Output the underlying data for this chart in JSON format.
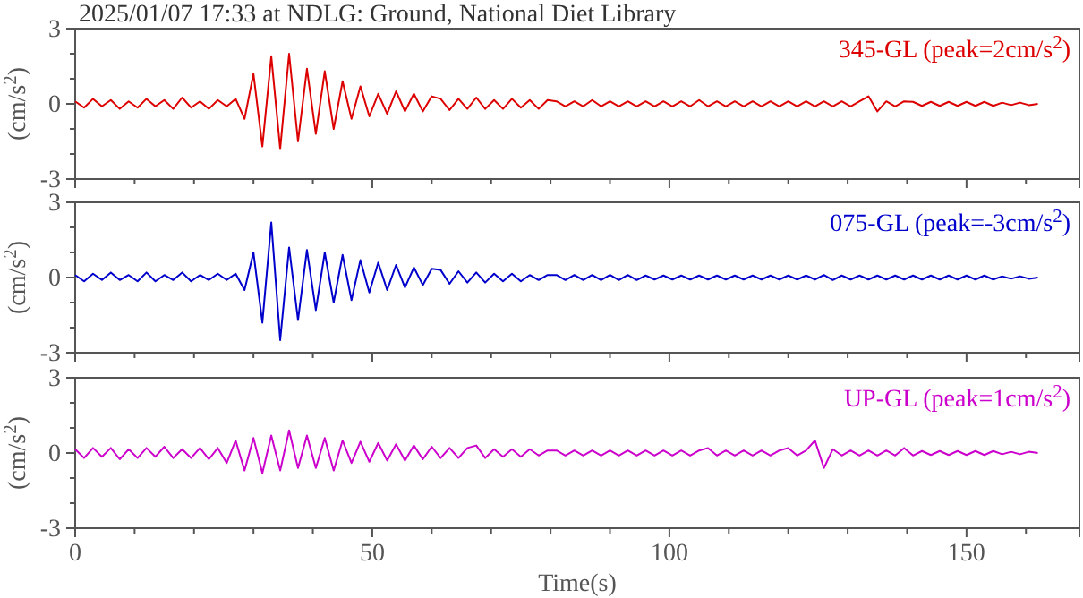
{
  "chart_data": [
    {
      "type": "line",
      "title": "2025/01/07 17:33 at NDLG: Ground, National Diet Library",
      "ylabel": "(cm/s$^{2}$)",
      "legend": "top right",
      "tick_labels": "y",
      "grid": false,
      "marker": "none",
      "line_style": "solid",
      "xlim": [
        0,
        169
      ],
      "xticks": [
        0,
        {
          "value": 10,
          "label": null
        },
        {
          "value": 20,
          "label": null
        },
        {
          "value": 30,
          "label": null
        },
        {
          "value": 40,
          "label": null
        },
        50,
        {
          "value": 60,
          "label": null
        },
        {
          "value": 70,
          "label": null
        },
        {
          "value": 80,
          "label": null
        },
        {
          "value": 90,
          "label": null
        },
        100,
        {
          "value": 110,
          "label": null
        },
        {
          "value": 120,
          "label": null
        },
        {
          "value": 130,
          "label": null
        },
        {
          "value": 140,
          "label": null
        },
        150,
        {
          "value": 160,
          "label": null
        }
      ],
      "ylim": [
        -3,
        3
      ],
      "yticks": [
        -3,
        {
          "value": -2,
          "label": null
        },
        {
          "value": -1,
          "label": null
        },
        0,
        {
          "value": 1,
          "label": null
        },
        {
          "value": 2,
          "label": null
        },
        3
      ],
      "x": [
        0,
        1.5,
        3,
        4.5,
        6,
        7.5,
        9,
        10.5,
        12,
        13.5,
        15,
        16.5,
        18,
        19.5,
        21,
        22.5,
        24,
        25.5,
        27,
        28.5,
        30,
        31.5,
        33,
        34.5,
        36,
        37.5,
        39,
        40.5,
        42,
        43.5,
        45,
        46.5,
        48,
        49.5,
        51,
        52.5,
        54,
        55.5,
        57,
        58.5,
        60,
        61.5,
        63,
        64.5,
        66,
        67.5,
        69,
        70.5,
        72,
        73.5,
        75,
        76.5,
        78,
        79.5,
        81,
        82.5,
        84,
        85.5,
        87,
        88.5,
        90,
        91.5,
        93,
        94.5,
        96,
        97.5,
        99,
        100.5,
        102,
        103.5,
        105,
        106.5,
        108,
        109.5,
        111,
        112.5,
        114,
        115.5,
        117,
        118.5,
        120,
        121.5,
        123,
        124.5,
        126,
        127.5,
        129,
        130.5,
        132,
        133.5,
        135,
        136.5,
        138,
        139.5,
        141,
        142.5,
        144,
        145.5,
        147,
        148.5,
        150,
        151.5,
        153,
        154.5,
        156,
        157.5,
        159,
        160.5,
        162
      ],
      "series": [
        {
          "name": "345-GL (peak=2cm/s$^{2}$)",
          "color": "#dd0000",
          "values": [
            0.1,
            -0.15,
            0.2,
            -0.1,
            0.15,
            -0.2,
            0.1,
            -0.15,
            0.2,
            -0.1,
            0.15,
            -0.2,
            0.25,
            -0.15,
            0.1,
            -0.2,
            0.15,
            -0.1,
            0.2,
            -0.6,
            1.2,
            -1.7,
            1.9,
            -1.8,
            2.0,
            -1.5,
            1.4,
            -1.2,
            1.3,
            -1.0,
            0.9,
            -0.6,
            0.7,
            -0.5,
            0.4,
            -0.4,
            0.5,
            -0.3,
            0.4,
            -0.3,
            0.3,
            0.2,
            -0.25,
            0.2,
            -0.2,
            0.25,
            -0.2,
            0.15,
            -0.2,
            0.2,
            -0.15,
            0.15,
            -0.2,
            0.15,
            0.1,
            -0.1,
            0.1,
            -0.1,
            0.15,
            -0.1,
            0.1,
            -0.1,
            0.1,
            -0.1,
            0.1,
            -0.1,
            0.1,
            -0.1,
            0.1,
            -0.1,
            0.15,
            -0.1,
            0.1,
            -0.1,
            0.1,
            -0.1,
            0.1,
            -0.1,
            0.1,
            -0.1,
            0.1,
            -0.1,
            0.1,
            -0.1,
            0.1,
            -0.1,
            0.1,
            -0.1,
            0.1,
            0.3,
            -0.3,
            0.1,
            -0.1,
            0.1,
            0.08,
            -0.08,
            0.08,
            -0.08,
            0.08,
            -0.08,
            0.08,
            -0.08,
            0.08,
            -0.08,
            0.05,
            -0.05,
            0.05,
            -0.05,
            0
          ]
        }
      ]
    },
    {
      "type": "line",
      "ylabel": "(cm/s$^{2}$)",
      "legend": "top right",
      "tick_labels": "y",
      "grid": false,
      "marker": "none",
      "line_style": "solid",
      "xlim": [
        0,
        169
      ],
      "xticks": [
        0,
        {
          "value": 10,
          "label": null
        },
        {
          "value": 20,
          "label": null
        },
        {
          "value": 30,
          "label": null
        },
        {
          "value": 40,
          "label": null
        },
        50,
        {
          "value": 60,
          "label": null
        },
        {
          "value": 70,
          "label": null
        },
        {
          "value": 80,
          "label": null
        },
        {
          "value": 90,
          "label": null
        },
        100,
        {
          "value": 110,
          "label": null
        },
        {
          "value": 120,
          "label": null
        },
        {
          "value": 130,
          "label": null
        },
        {
          "value": 140,
          "label": null
        },
        150,
        {
          "value": 160,
          "label": null
        }
      ],
      "ylim": [
        -3,
        3
      ],
      "yticks": [
        -3,
        {
          "value": -2,
          "label": null
        },
        {
          "value": -1,
          "label": null
        },
        0,
        {
          "value": 1,
          "label": null
        },
        {
          "value": 2,
          "label": null
        },
        3
      ],
      "x": [
        0,
        1.5,
        3,
        4.5,
        6,
        7.5,
        9,
        10.5,
        12,
        13.5,
        15,
        16.5,
        18,
        19.5,
        21,
        22.5,
        24,
        25.5,
        27,
        28.5,
        30,
        31.5,
        33,
        34.5,
        36,
        37.5,
        39,
        40.5,
        42,
        43.5,
        45,
        46.5,
        48,
        49.5,
        51,
        52.5,
        54,
        55.5,
        57,
        58.5,
        60,
        61.5,
        63,
        64.5,
        66,
        67.5,
        69,
        70.5,
        72,
        73.5,
        75,
        76.5,
        78,
        79.5,
        81,
        82.5,
        84,
        85.5,
        87,
        88.5,
        90,
        91.5,
        93,
        94.5,
        96,
        97.5,
        99,
        100.5,
        102,
        103.5,
        105,
        106.5,
        108,
        109.5,
        111,
        112.5,
        114,
        115.5,
        117,
        118.5,
        120,
        121.5,
        123,
        124.5,
        126,
        127.5,
        129,
        130.5,
        132,
        133.5,
        135,
        136.5,
        138,
        139.5,
        141,
        142.5,
        144,
        145.5,
        147,
        148.5,
        150,
        151.5,
        153,
        154.5,
        156,
        157.5,
        159,
        160.5,
        162
      ],
      "series": [
        {
          "name": "075-GL (peak=-3cm/s$^{2}$)",
          "color": "#0000cc",
          "values": [
            0.1,
            -0.15,
            0.15,
            -0.1,
            0.2,
            -0.1,
            0.1,
            -0.15,
            0.2,
            -0.15,
            0.1,
            -0.1,
            0.2,
            -0.15,
            0.1,
            -0.1,
            0.15,
            -0.1,
            0.15,
            -0.5,
            1.0,
            -1.8,
            2.2,
            -2.5,
            1.2,
            -1.7,
            1.1,
            -1.3,
            1.0,
            -1.0,
            0.9,
            -0.9,
            0.7,
            -0.6,
            0.6,
            -0.5,
            0.5,
            -0.4,
            0.4,
            -0.3,
            0.35,
            0.3,
            -0.25,
            0.25,
            -0.2,
            0.2,
            -0.2,
            0.15,
            -0.15,
            0.15,
            -0.15,
            0.1,
            -0.1,
            0.1,
            0.1,
            -0.1,
            0.1,
            -0.1,
            0.1,
            -0.1,
            0.1,
            -0.1,
            0.1,
            -0.1,
            0.08,
            -0.08,
            0.08,
            -0.08,
            0.08,
            -0.08,
            0.08,
            -0.08,
            0.08,
            -0.08,
            0.08,
            -0.08,
            0.08,
            -0.08,
            0.08,
            -0.08,
            0.08,
            -0.08,
            0.08,
            -0.08,
            0.1,
            -0.1,
            0.08,
            -0.08,
            0.08,
            -0.08,
            0.08,
            -0.08,
            0.08,
            -0.08,
            0.08,
            -0.08,
            0.08,
            -0.08,
            0.08,
            -0.08,
            0.08,
            -0.08,
            0.08,
            -0.08,
            0.05,
            -0.05,
            0.05,
            -0.05,
            0
          ]
        }
      ]
    },
    {
      "type": "line",
      "ylabel": "(cm/s$^{2}$)",
      "xlabel": "Time(s)",
      "legend": "top right",
      "grid": false,
      "marker": "none",
      "line_style": "solid",
      "xlim": [
        0,
        169
      ],
      "xticks": [
        0,
        {
          "value": 10,
          "label": null
        },
        {
          "value": 20,
          "label": null
        },
        {
          "value": 30,
          "label": null
        },
        {
          "value": 40,
          "label": null
        },
        50,
        {
          "value": 60,
          "label": null
        },
        {
          "value": 70,
          "label": null
        },
        {
          "value": 80,
          "label": null
        },
        {
          "value": 90,
          "label": null
        },
        100,
        {
          "value": 110,
          "label": null
        },
        {
          "value": 120,
          "label": null
        },
        {
          "value": 130,
          "label": null
        },
        {
          "value": 140,
          "label": null
        },
        150,
        {
          "value": 160,
          "label": null
        }
      ],
      "ylim": [
        -3,
        3
      ],
      "yticks": [
        -3,
        {
          "value": -2,
          "label": null
        },
        {
          "value": -1,
          "label": null
        },
        0,
        {
          "value": 1,
          "label": null
        },
        {
          "value": 2,
          "label": null
        },
        3
      ],
      "x": [
        0,
        1.5,
        3,
        4.5,
        6,
        7.5,
        9,
        10.5,
        12,
        13.5,
        15,
        16.5,
        18,
        19.5,
        21,
        22.5,
        24,
        25.5,
        27,
        28.5,
        30,
        31.5,
        33,
        34.5,
        36,
        37.5,
        39,
        40.5,
        42,
        43.5,
        45,
        46.5,
        48,
        49.5,
        51,
        52.5,
        54,
        55.5,
        57,
        58.5,
        60,
        61.5,
        63,
        64.5,
        66,
        67.5,
        69,
        70.5,
        72,
        73.5,
        75,
        76.5,
        78,
        79.5,
        81,
        82.5,
        84,
        85.5,
        87,
        88.5,
        90,
        91.5,
        93,
        94.5,
        96,
        97.5,
        99,
        100.5,
        102,
        103.5,
        105,
        106.5,
        108,
        109.5,
        111,
        112.5,
        114,
        115.5,
        117,
        118.5,
        120,
        121.5,
        123,
        124.5,
        126,
        127.5,
        129,
        130.5,
        132,
        133.5,
        135,
        136.5,
        138,
        139.5,
        141,
        142.5,
        144,
        145.5,
        147,
        148.5,
        150,
        151.5,
        153,
        154.5,
        156,
        157.5,
        159,
        160.5,
        162
      ],
      "series": [
        {
          "name": "UP-GL (peak=1cm/s$^{2}$)",
          "color": "#cc00cc",
          "values": [
            0.15,
            -0.2,
            0.2,
            -0.15,
            0.2,
            -0.25,
            0.15,
            -0.2,
            0.2,
            -0.15,
            0.25,
            -0.2,
            0.15,
            -0.2,
            0.2,
            -0.25,
            0.2,
            -0.4,
            0.5,
            -0.7,
            0.6,
            -0.8,
            0.7,
            -0.7,
            0.9,
            -0.6,
            0.7,
            -0.6,
            0.6,
            -0.7,
            0.5,
            -0.4,
            0.45,
            -0.35,
            0.4,
            -0.3,
            0.35,
            -0.3,
            0.3,
            -0.25,
            0.25,
            -0.2,
            0.2,
            -0.2,
            0.2,
            0.3,
            -0.2,
            0.15,
            -0.15,
            0.15,
            -0.15,
            0.15,
            -0.1,
            0.1,
            0.1,
            -0.1,
            0.1,
            -0.1,
            0.1,
            -0.1,
            0.1,
            -0.1,
            0.1,
            -0.1,
            0.1,
            -0.1,
            0.1,
            -0.1,
            0.1,
            -0.1,
            0.1,
            0.2,
            -0.1,
            0.1,
            -0.1,
            0.1,
            -0.1,
            0.1,
            -0.1,
            0.1,
            0.2,
            -0.1,
            0.1,
            0.5,
            -0.6,
            0.15,
            -0.1,
            0.1,
            -0.1,
            0.1,
            -0.1,
            0.1,
            -0.1,
            0.2,
            -0.1,
            0.08,
            -0.08,
            0.08,
            -0.08,
            0.08,
            -0.08,
            0.08,
            -0.08,
            0.08,
            -0.05,
            0.05,
            -0.05,
            0.05,
            0
          ]
        }
      ]
    }
  ]
}
